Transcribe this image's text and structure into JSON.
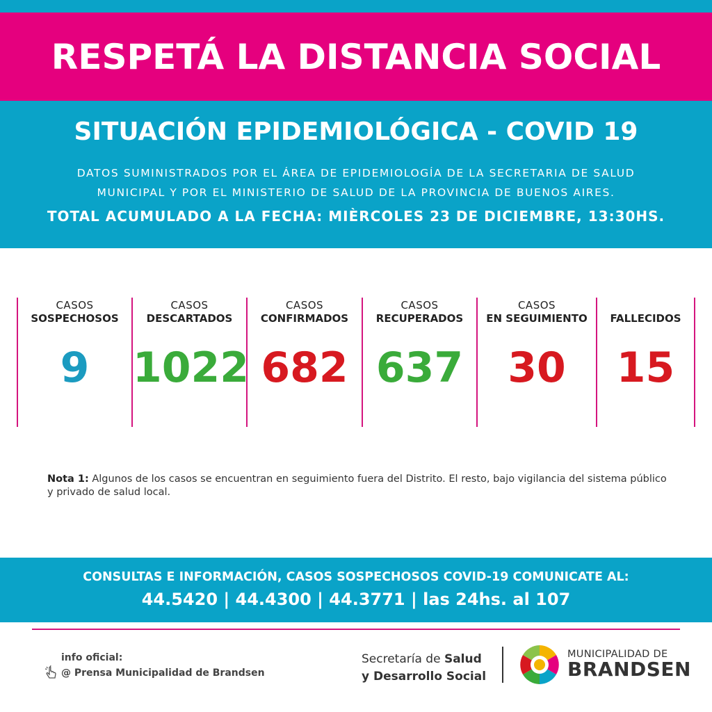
{
  "banner": {
    "title": "RESPETÁ LA DISTANCIA SOCIAL"
  },
  "header": {
    "subtitle": "SITUACIÓN EPIDEMIOLÓGICA - COVID 19",
    "source_line1": "DATOS SUMINISTRADOS POR EL ÁREA DE EPIDEMIOLOGÍA DE LA SECRETARIA DE SALUD",
    "source_line2": "MUNICIPAL Y POR EL MINISTERIO DE SALUD DE LA PROVINCIA DE BUENOS AIRES.",
    "total": "TOTAL ACUMULADO A LA FECHA: MIÈRCOLES 23 DE DICIEMBRE, 13:30HS."
  },
  "stats": [
    {
      "line1": "CASOS",
      "line2": "SOSPECHOSOS",
      "value": "9",
      "color": "#1b9bc0"
    },
    {
      "line1": "CASOS",
      "line2": "DESCARTADOS",
      "value": "1022",
      "color": "#3aab3a"
    },
    {
      "line1": "CASOS",
      "line2": "CONFIRMADOS",
      "value": "682",
      "color": "#d71920"
    },
    {
      "line1": "CASOS",
      "line2": "RECUPERADOS",
      "value": "637",
      "color": "#3aab3a"
    },
    {
      "line1": "CASOS",
      "line2": "EN SEGUIMIENTO",
      "value": "30",
      "color": "#d71920"
    },
    {
      "line1": "",
      "line2": "FALLECIDOS",
      "value": "15",
      "color": "#d71920"
    }
  ],
  "note": {
    "label": "Nota 1:",
    "text": " Algunos de los casos se encuentran en seguimiento fuera del Distrito. El resto, bajo vigilancia del sistema público y privado de salud local."
  },
  "contact": {
    "line1": "CONSULTAS E INFORMACIÓN, CASOS SOSPECHOSOS COVID-19 COMUNICATE AL:",
    "line2": "44.5420 | 44.4300 | 44.3771 | las 24hs. al 107"
  },
  "footer": {
    "info_label": "info oficial:",
    "info_source": "@ Prensa Municipalidad de Brandsen",
    "secretaria_line1_a": "Secretaría de ",
    "secretaria_line1_b": "Salud",
    "secretaria_line2": "y Desarrollo Social",
    "muni_line1": "MUNICIPALIDAD DE",
    "muni_line2": "BRANDSEN",
    "icons": [
      "cursor-hand-icon",
      "brandsen-logo"
    ]
  },
  "colors": {
    "pink": "#e5007e",
    "blue": "#0aa3c8",
    "green": "#3aab3a",
    "red": "#d71920"
  }
}
